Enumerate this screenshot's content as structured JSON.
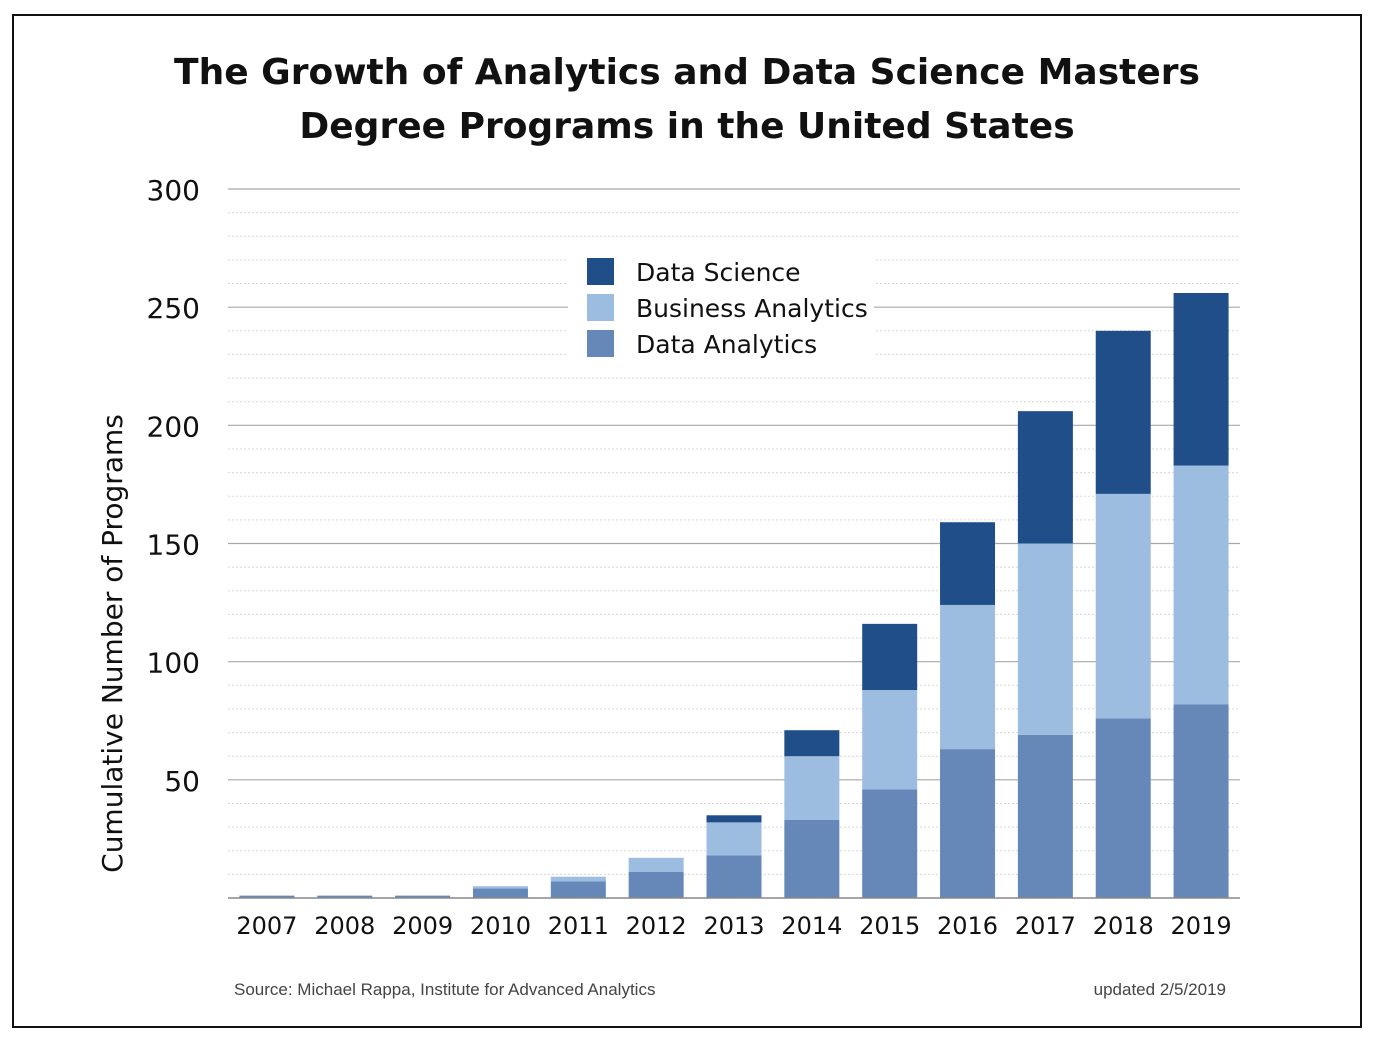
{
  "chart_data": {
    "type": "bar",
    "stacked": true,
    "title_line1": "The Growth of Analytics and Data Science Masters",
    "title_line2": "Degree Programs in the United States",
    "ylabel": "Cumulative Number of Programs",
    "xlabel": "",
    "ylim": [
      0,
      300
    ],
    "yticks": [
      50,
      100,
      150,
      200,
      250,
      300
    ],
    "categories": [
      "2007",
      "2008",
      "2009",
      "2010",
      "2011",
      "2012",
      "2013",
      "2014",
      "2015",
      "2016",
      "2017",
      "2018",
      "2019"
    ],
    "series": [
      {
        "name": "Data Analytics",
        "color": "#6688b8",
        "values": [
          1,
          1,
          1,
          4,
          7,
          11,
          18,
          33,
          46,
          63,
          69,
          76,
          82
        ]
      },
      {
        "name": "Business Analytics",
        "color": "#9dbde0",
        "values": [
          0,
          0,
          0,
          1,
          2,
          6,
          14,
          27,
          42,
          61,
          81,
          95,
          101
        ]
      },
      {
        "name": "Data Science",
        "color": "#1f4e88",
        "values": [
          0,
          0,
          0,
          0,
          0,
          0,
          3,
          11,
          28,
          35,
          56,
          69,
          73
        ]
      }
    ],
    "legend_order": [
      "Data Science",
      "Business Analytics",
      "Data Analytics"
    ],
    "legend_position": "top-center",
    "grid": true
  },
  "footer": {
    "source": "Source: Michael Rappa, Institute for Advanced Analytics",
    "updated": "updated 2/5/2019"
  }
}
